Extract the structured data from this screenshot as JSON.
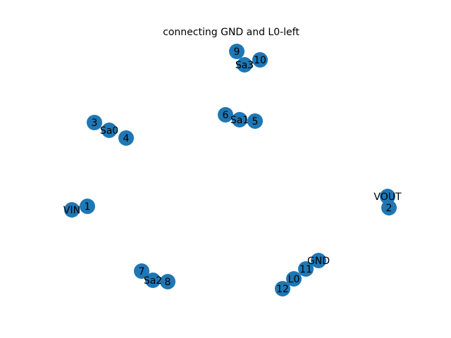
{
  "title": "connecting GND and L0-left",
  "node_color": "#1f77b4",
  "label_color": "#000000",
  "background": "#ffffff",
  "nodes": [
    {
      "id": "9",
      "label": "9"
    },
    {
      "id": "10",
      "label": "10"
    },
    {
      "id": "Sa3",
      "label": "Sa3"
    },
    {
      "id": "6",
      "label": "6"
    },
    {
      "id": "Sa1",
      "label": "Sa1"
    },
    {
      "id": "5",
      "label": "5"
    },
    {
      "id": "3",
      "label": "3"
    },
    {
      "id": "Sa0",
      "label": "Sa0"
    },
    {
      "id": "4",
      "label": "4"
    },
    {
      "id": "1",
      "label": "1"
    },
    {
      "id": "VIN",
      "label": "VIN"
    },
    {
      "id": "VOUT",
      "label": "VOUT"
    },
    {
      "id": "2",
      "label": "2"
    },
    {
      "id": "7",
      "label": "7"
    },
    {
      "id": "Sa2",
      "label": "Sa2"
    },
    {
      "id": "8",
      "label": "8"
    },
    {
      "id": "GND",
      "label": "GND"
    },
    {
      "id": "11",
      "label": "11"
    },
    {
      "id": "L0",
      "label": "L0"
    },
    {
      "id": "12",
      "label": "12"
    }
  ]
}
